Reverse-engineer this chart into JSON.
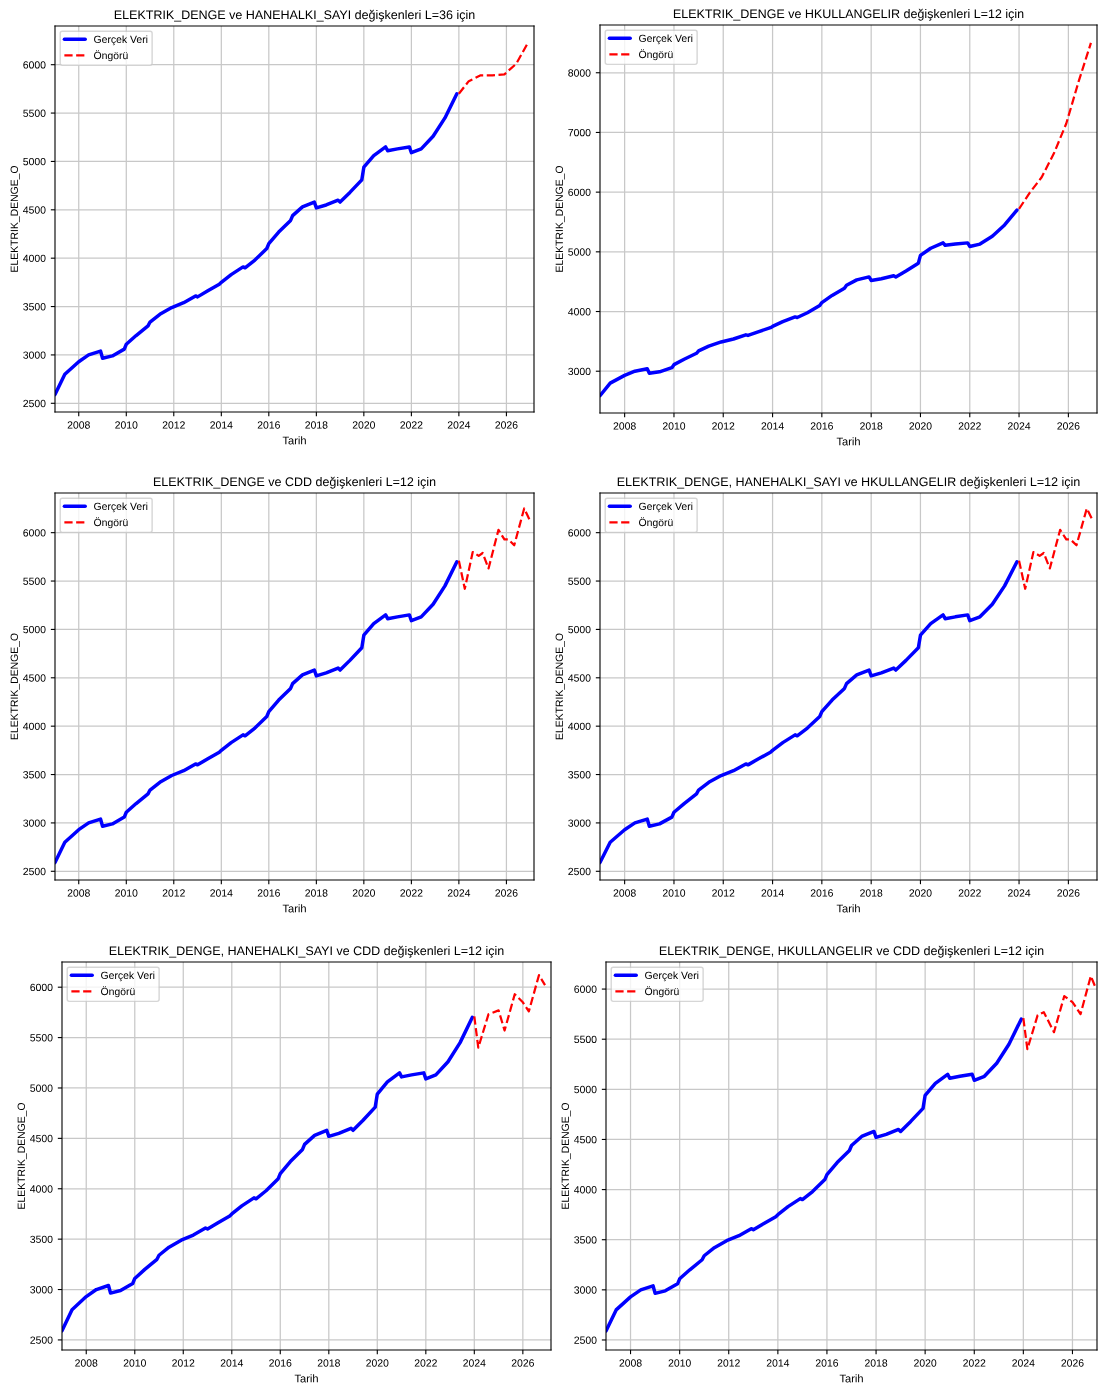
{
  "chart_data": [
    {
      "type": "line",
      "title": "ELEKTRIK_DENGE ve HANEHALKI_SAYI değişkenleri L=36 için",
      "xlabel": "Tarih",
      "ylabel": "ELEKTRIK_DENGE_O",
      "xlim": [
        "2007-01",
        "2027-03"
      ],
      "ylim": [
        2410,
        6400
      ],
      "xticks": [
        "2008",
        "2010",
        "2012",
        "2014",
        "2016",
        "2018",
        "2020",
        "2022",
        "2024",
        "2026"
      ],
      "yticks": [
        2500,
        3000,
        3500,
        4000,
        4500,
        5000,
        5500,
        6000
      ],
      "grid": true,
      "legend": "top left",
      "series": [
        {
          "name": "Gerçek Veri",
          "color": "#0000ff",
          "line_style": "solid",
          "x": [
            "2007-01",
            "2007-06",
            "2008-01",
            "2008-06",
            "2008-12",
            "2009-01",
            "2009-06",
            "2009-12",
            "2010-01",
            "2010-06",
            "2010-12",
            "2011-01",
            "2011-06",
            "2011-12",
            "2012-06",
            "2012-12",
            "2013-01",
            "2013-06",
            "2013-12",
            "2014-01",
            "2014-06",
            "2014-12",
            "2015-01",
            "2015-06",
            "2015-12",
            "2016-01",
            "2016-06",
            "2016-12",
            "2017-01",
            "2017-06",
            "2017-12",
            "2018-01",
            "2018-06",
            "2018-12",
            "2019-01",
            "2019-06",
            "2019-12",
            "2020-01",
            "2020-06",
            "2020-12",
            "2021-01",
            "2021-06",
            "2021-12",
            "2022-01",
            "2022-06",
            "2022-12",
            "2023-06",
            "2023-12"
          ],
          "values": [
            2590,
            2800,
            2930,
            3000,
            3040,
            2965,
            2990,
            3060,
            3110,
            3200,
            3300,
            3340,
            3420,
            3490,
            3540,
            3610,
            3600,
            3660,
            3730,
            3750,
            3830,
            3910,
            3900,
            3980,
            4100,
            4150,
            4270,
            4390,
            4440,
            4530,
            4580,
            4520,
            4550,
            4600,
            4580,
            4680,
            4810,
            4940,
            5060,
            5150,
            5110,
            5130,
            5150,
            5090,
            5130,
            5260,
            5450,
            5700
          ]
        },
        {
          "name": "Öngörü",
          "color": "#ff0000",
          "line_style": "dashed",
          "x": [
            "2024-01",
            "2024-06",
            "2024-12",
            "2025-06",
            "2025-12",
            "2026-06",
            "2026-12"
          ],
          "values": [
            5700,
            5830,
            5890,
            5890,
            5900,
            6010,
            6230
          ]
        }
      ]
    },
    {
      "type": "line",
      "title": "ELEKTRIK_DENGE ve HKULLANGELIR değişkenleri L=12 için",
      "xlabel": "Tarih",
      "ylabel": "ELEKTRIK_DENGE_O",
      "xlim": [
        "2007-01",
        "2027-03"
      ],
      "ylim": [
        2300,
        8800
      ],
      "xticks": [
        "2008",
        "2010",
        "2012",
        "2014",
        "2016",
        "2018",
        "2020",
        "2022",
        "2024",
        "2026"
      ],
      "yticks": [
        3000,
        4000,
        5000,
        6000,
        7000,
        8000
      ],
      "grid": true,
      "legend": "top left",
      "series": [
        {
          "name": "Gerçek Veri",
          "color": "#0000ff",
          "line_style": "solid",
          "x": [
            "2007-01",
            "2007-06",
            "2008-01",
            "2008-06",
            "2008-12",
            "2009-01",
            "2009-06",
            "2009-12",
            "2010-01",
            "2010-06",
            "2010-12",
            "2011-01",
            "2011-06",
            "2011-12",
            "2012-06",
            "2012-12",
            "2013-01",
            "2013-06",
            "2013-12",
            "2014-01",
            "2014-06",
            "2014-12",
            "2015-01",
            "2015-06",
            "2015-12",
            "2016-01",
            "2016-06",
            "2016-12",
            "2017-01",
            "2017-06",
            "2017-12",
            "2018-01",
            "2018-06",
            "2018-12",
            "2019-01",
            "2019-06",
            "2019-12",
            "2020-01",
            "2020-06",
            "2020-12",
            "2021-01",
            "2021-06",
            "2021-12",
            "2022-01",
            "2022-06",
            "2022-12",
            "2023-06",
            "2023-12"
          ],
          "values": [
            2590,
            2800,
            2930,
            3000,
            3040,
            2965,
            2990,
            3060,
            3110,
            3200,
            3300,
            3340,
            3420,
            3490,
            3540,
            3610,
            3600,
            3660,
            3730,
            3750,
            3830,
            3910,
            3900,
            3980,
            4100,
            4150,
            4270,
            4390,
            4440,
            4530,
            4580,
            4520,
            4550,
            4600,
            4580,
            4680,
            4810,
            4940,
            5060,
            5150,
            5110,
            5130,
            5150,
            5090,
            5130,
            5260,
            5450,
            5700
          ]
        },
        {
          "name": "Öngörü",
          "color": "#ff0000",
          "line_style": "dashed",
          "x": [
            "2024-01",
            "2024-06",
            "2024-12",
            "2025-06",
            "2025-12",
            "2026-06",
            "2026-12"
          ],
          "values": [
            5720,
            5980,
            6250,
            6650,
            7150,
            7850,
            8500
          ]
        }
      ]
    },
    {
      "type": "line",
      "title": "ELEKTRIK_DENGE ve CDD değişkenleri L=12 için",
      "xlabel": "Tarih",
      "ylabel": "ELEKTRIK_DENGE_O",
      "xlim": [
        "2007-01",
        "2027-03"
      ],
      "ylim": [
        2410,
        6410
      ],
      "xticks": [
        "2008",
        "2010",
        "2012",
        "2014",
        "2016",
        "2018",
        "2020",
        "2022",
        "2024",
        "2026"
      ],
      "yticks": [
        2500,
        3000,
        3500,
        4000,
        4500,
        5000,
        5500,
        6000
      ],
      "grid": true,
      "legend": "top left",
      "series": [
        {
          "name": "Gerçek Veri",
          "color": "#0000ff",
          "line_style": "solid",
          "x": [
            "2007-01",
            "2007-06",
            "2008-01",
            "2008-06",
            "2008-12",
            "2009-01",
            "2009-06",
            "2009-12",
            "2010-01",
            "2010-06",
            "2010-12",
            "2011-01",
            "2011-06",
            "2011-12",
            "2012-06",
            "2012-12",
            "2013-01",
            "2013-06",
            "2013-12",
            "2014-01",
            "2014-06",
            "2014-12",
            "2015-01",
            "2015-06",
            "2015-12",
            "2016-01",
            "2016-06",
            "2016-12",
            "2017-01",
            "2017-06",
            "2017-12",
            "2018-01",
            "2018-06",
            "2018-12",
            "2019-01",
            "2019-06",
            "2019-12",
            "2020-01",
            "2020-06",
            "2020-12",
            "2021-01",
            "2021-06",
            "2021-12",
            "2022-01",
            "2022-06",
            "2022-12",
            "2023-06",
            "2023-12"
          ],
          "values": [
            2590,
            2800,
            2930,
            3000,
            3040,
            2965,
            2990,
            3060,
            3110,
            3200,
            3300,
            3340,
            3420,
            3490,
            3540,
            3610,
            3600,
            3660,
            3730,
            3750,
            3830,
            3910,
            3900,
            3980,
            4100,
            4150,
            4270,
            4390,
            4440,
            4530,
            4580,
            4520,
            4550,
            4600,
            4580,
            4680,
            4810,
            4940,
            5060,
            5150,
            5110,
            5130,
            5150,
            5090,
            5130,
            5260,
            5450,
            5700
          ]
        },
        {
          "name": "Öngörü",
          "color": "#ff0000",
          "line_style": "dashed",
          "x": [
            "2024-01",
            "2024-04",
            "2024-08",
            "2024-11",
            "2025-01",
            "2025-04",
            "2025-09",
            "2025-12",
            "2026-02",
            "2026-05",
            "2026-10",
            "2027-01"
          ],
          "values": [
            5710,
            5420,
            5800,
            5760,
            5790,
            5630,
            6030,
            5930,
            5930,
            5870,
            6250,
            6120
          ]
        }
      ]
    },
    {
      "type": "line",
      "title": "ELEKTRIK_DENGE, HANEHALKI_SAYI ve HKULLANGELIR değişkenleri L=12 için",
      "xlabel": "Tarih",
      "ylabel": "ELEKTRIK_DENGE_O",
      "xlim": [
        "2007-01",
        "2027-03"
      ],
      "ylim": [
        2410,
        6410
      ],
      "xticks": [
        "2008",
        "2010",
        "2012",
        "2014",
        "2016",
        "2018",
        "2020",
        "2022",
        "2024",
        "2026"
      ],
      "yticks": [
        2500,
        3000,
        3500,
        4000,
        4500,
        5000,
        5500,
        6000
      ],
      "grid": true,
      "legend": "top left",
      "series": [
        {
          "name": "Gerçek Veri",
          "color": "#0000ff",
          "line_style": "solid",
          "x": [
            "2007-01",
            "2007-06",
            "2008-01",
            "2008-06",
            "2008-12",
            "2009-01",
            "2009-06",
            "2009-12",
            "2010-01",
            "2010-06",
            "2010-12",
            "2011-01",
            "2011-06",
            "2011-12",
            "2012-06",
            "2012-12",
            "2013-01",
            "2013-06",
            "2013-12",
            "2014-01",
            "2014-06",
            "2014-12",
            "2015-01",
            "2015-06",
            "2015-12",
            "2016-01",
            "2016-06",
            "2016-12",
            "2017-01",
            "2017-06",
            "2017-12",
            "2018-01",
            "2018-06",
            "2018-12",
            "2019-01",
            "2019-06",
            "2019-12",
            "2020-01",
            "2020-06",
            "2020-12",
            "2021-01",
            "2021-06",
            "2021-12",
            "2022-01",
            "2022-06",
            "2022-12",
            "2023-06",
            "2023-12"
          ],
          "values": [
            2590,
            2800,
            2930,
            3000,
            3040,
            2965,
            2990,
            3060,
            3110,
            3200,
            3300,
            3340,
            3420,
            3490,
            3540,
            3610,
            3600,
            3660,
            3730,
            3750,
            3830,
            3910,
            3900,
            3980,
            4100,
            4150,
            4270,
            4390,
            4440,
            4530,
            4580,
            4520,
            4550,
            4600,
            4580,
            4680,
            4810,
            4940,
            5060,
            5150,
            5110,
            5130,
            5150,
            5090,
            5130,
            5260,
            5450,
            5700
          ]
        },
        {
          "name": "Öngörü",
          "color": "#ff0000",
          "line_style": "dashed",
          "x": [
            "2024-01",
            "2024-04",
            "2024-08",
            "2024-11",
            "2025-01",
            "2025-04",
            "2025-09",
            "2025-12",
            "2026-02",
            "2026-05",
            "2026-10",
            "2027-01"
          ],
          "values": [
            5710,
            5420,
            5800,
            5760,
            5790,
            5630,
            6030,
            5930,
            5930,
            5870,
            6250,
            6120
          ]
        }
      ]
    },
    {
      "type": "line",
      "title": "ELEKTRIK_DENGE, HANEHALKI_SAYI ve CDD değişkenleri L=12 için",
      "xlabel": "Tarih",
      "ylabel": "ELEKTRIK_DENGE_O",
      "xlim": [
        "2007-01",
        "2027-03"
      ],
      "ylim": [
        2400,
        6250
      ],
      "xticks": [
        "2008",
        "2010",
        "2012",
        "2014",
        "2016",
        "2018",
        "2020",
        "2022",
        "2024",
        "2026"
      ],
      "yticks": [
        2500,
        3000,
        3500,
        4000,
        4500,
        5000,
        5500,
        6000
      ],
      "grid": true,
      "legend": "top left",
      "series": [
        {
          "name": "Gerçek Veri",
          "color": "#0000ff",
          "line_style": "solid",
          "x": [
            "2007-01",
            "2007-06",
            "2008-01",
            "2008-06",
            "2008-12",
            "2009-01",
            "2009-06",
            "2009-12",
            "2010-01",
            "2010-06",
            "2010-12",
            "2011-01",
            "2011-06",
            "2011-12",
            "2012-06",
            "2012-12",
            "2013-01",
            "2013-06",
            "2013-12",
            "2014-01",
            "2014-06",
            "2014-12",
            "2015-01",
            "2015-06",
            "2015-12",
            "2016-01",
            "2016-06",
            "2016-12",
            "2017-01",
            "2017-06",
            "2017-12",
            "2018-01",
            "2018-06",
            "2018-12",
            "2019-01",
            "2019-06",
            "2019-12",
            "2020-01",
            "2020-06",
            "2020-12",
            "2021-01",
            "2021-06",
            "2021-12",
            "2022-01",
            "2022-06",
            "2022-12",
            "2023-06",
            "2023-12"
          ],
          "values": [
            2590,
            2800,
            2930,
            3000,
            3040,
            2965,
            2990,
            3060,
            3110,
            3200,
            3300,
            3340,
            3420,
            3490,
            3540,
            3610,
            3600,
            3660,
            3730,
            3750,
            3830,
            3910,
            3900,
            3980,
            4100,
            4150,
            4270,
            4390,
            4440,
            4530,
            4580,
            4520,
            4550,
            4600,
            4580,
            4680,
            4810,
            4940,
            5060,
            5150,
            5110,
            5130,
            5150,
            5090,
            5130,
            5260,
            5450,
            5700
          ]
        },
        {
          "name": "Öngörü",
          "color": "#ff0000",
          "line_style": "dashed",
          "x": [
            "2024-01",
            "2024-03",
            "2024-08",
            "2025-01",
            "2025-04",
            "2025-09",
            "2026-01",
            "2026-04",
            "2026-09",
            "2026-12"
          ],
          "values": [
            5710,
            5400,
            5730,
            5770,
            5570,
            5930,
            5850,
            5760,
            6120,
            6020
          ]
        }
      ]
    },
    {
      "type": "line",
      "title": "ELEKTRIK_DENGE, HKULLANGELIR ve CDD değişkenleri L=12 için",
      "xlabel": "Tarih",
      "ylabel": "ELEKTRIK_DENGE_O",
      "xlim": [
        "2007-01",
        "2027-01"
      ],
      "ylim": [
        2400,
        6270
      ],
      "xticks": [
        "2008",
        "2010",
        "2012",
        "2014",
        "2016",
        "2018",
        "2020",
        "2022",
        "2024",
        "2026"
      ],
      "yticks": [
        2500,
        3000,
        3500,
        4000,
        4500,
        5000,
        5500,
        6000
      ],
      "grid": true,
      "legend": "top left",
      "series": [
        {
          "name": "Gerçek Veri",
          "color": "#0000ff",
          "line_style": "solid",
          "x": [
            "2007-01",
            "2007-06",
            "2008-01",
            "2008-06",
            "2008-12",
            "2009-01",
            "2009-06",
            "2009-12",
            "2010-01",
            "2010-06",
            "2010-12",
            "2011-01",
            "2011-06",
            "2011-12",
            "2012-06",
            "2012-12",
            "2013-01",
            "2013-06",
            "2013-12",
            "2014-01",
            "2014-06",
            "2014-12",
            "2015-01",
            "2015-06",
            "2015-12",
            "2016-01",
            "2016-06",
            "2016-12",
            "2017-01",
            "2017-06",
            "2017-12",
            "2018-01",
            "2018-06",
            "2018-12",
            "2019-01",
            "2019-06",
            "2019-12",
            "2020-01",
            "2020-06",
            "2020-12",
            "2021-01",
            "2021-06",
            "2021-12",
            "2022-01",
            "2022-06",
            "2022-12",
            "2023-06",
            "2023-12"
          ],
          "values": [
            2590,
            2800,
            2930,
            3000,
            3040,
            2965,
            2990,
            3060,
            3110,
            3200,
            3300,
            3340,
            3420,
            3490,
            3540,
            3610,
            3600,
            3660,
            3730,
            3750,
            3830,
            3910,
            3900,
            3980,
            4100,
            4150,
            4270,
            4390,
            4440,
            4530,
            4580,
            4520,
            4550,
            4600,
            4580,
            4680,
            4810,
            4940,
            5060,
            5150,
            5110,
            5130,
            5150,
            5090,
            5130,
            5260,
            5450,
            5700
          ]
        },
        {
          "name": "Öngörü",
          "color": "#ff0000",
          "line_style": "dashed",
          "x": [
            "2024-01",
            "2024-03",
            "2024-08",
            "2024-11",
            "2025-04",
            "2025-09",
            "2026-01",
            "2026-05",
            "2026-10",
            "2026-12"
          ],
          "values": [
            5710,
            5400,
            5740,
            5770,
            5570,
            5930,
            5870,
            5750,
            6130,
            6030
          ]
        }
      ]
    }
  ]
}
